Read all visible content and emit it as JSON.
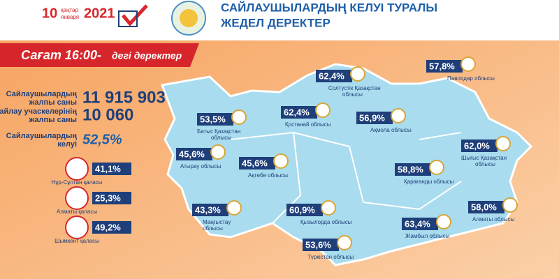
{
  "header": {
    "day": "10",
    "month_kz": "қаңтар",
    "month_ru": "января",
    "year": "2021",
    "title_line1": "САЙЛАУШЫЛАРДЫҢ КЕЛУІ ТУРАЛЫ",
    "title_line2": "ЖЕДЕЛ ДЕРЕКТЕР"
  },
  "banner": {
    "title": "Сағат 16:00-",
    "suffix": "дегі деректер"
  },
  "stats": [
    {
      "label_line1": "Сайлаушылардың",
      "label_line2": "жалпы саны",
      "value": "11 915 903"
    },
    {
      "label_line1": "Сайлау учаскелерінің",
      "label_line2": "жалпы саны",
      "value": "10 060"
    },
    {
      "label_line1": "Сайлаушылардың",
      "label_line2": "келуі",
      "value": "52,5%"
    }
  ],
  "cities": [
    {
      "value": "41,1%",
      "name": "Нұр-Сұлтан қаласы"
    },
    {
      "value": "25,3%",
      "name": "Алматы қаласы"
    },
    {
      "value": "49,2%",
      "name": "Шымкент қаласы"
    }
  ],
  "regions": [
    {
      "value": "62,4%",
      "name_line1": "Солтүстік Қазақстан",
      "name_line2": "облысы"
    },
    {
      "value": "57,8%",
      "name_line1": "Павлодар облысы"
    },
    {
      "value": "62,4%",
      "name_line1": "Қостанай облысы"
    },
    {
      "value": "56,9%",
      "name_line1": "Ақмола облысы"
    },
    {
      "value": "53,5%",
      "name_line1": "Батыс Қазақстан",
      "name_line2": "облысы"
    },
    {
      "value": "62,0%",
      "name_line1": "Шығыс Қазақстан",
      "name_line2": "облысы"
    },
    {
      "value": "45,6%",
      "name_line1": "Атырау облысы"
    },
    {
      "value": "45,6%",
      "name_line1": "Ақтөбе облысы"
    },
    {
      "value": "58,8%",
      "name_line1": "Қарағанды облысы"
    },
    {
      "value": "43,3%",
      "name_line1": "Маңғыстау",
      "name_line2": "облысы"
    },
    {
      "value": "60,9%",
      "name_line1": "Қызылорда облысы"
    },
    {
      "value": "58,0%",
      "name_line1": "Алматы облысы"
    },
    {
      "value": "63,4%",
      "name_line1": "Жамбыл облысы"
    },
    {
      "value": "53,6%",
      "name_line1": "Түркістан облысы"
    }
  ]
}
